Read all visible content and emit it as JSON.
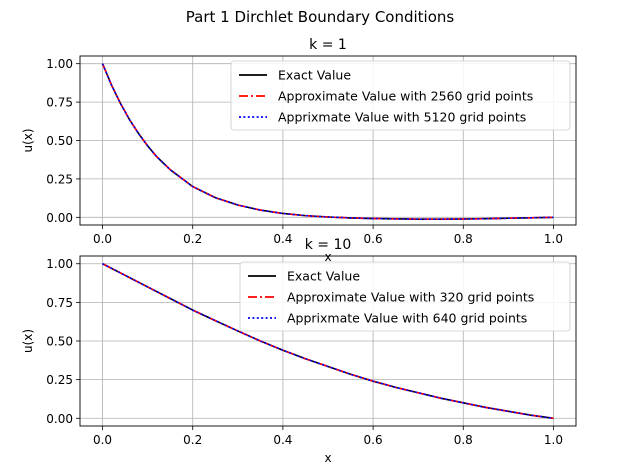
{
  "suptitle": "Part 1 Dirchlet Boundary Conditions",
  "colors": {
    "exact": "#000000",
    "approx": "#ff0000",
    "fine": "#0000ff",
    "grid": "#b0b0b0"
  },
  "chart_data": [
    {
      "type": "line",
      "title": "k = 1",
      "xlabel": "x",
      "ylabel": "u(x)",
      "xlim": [
        -0.05,
        1.05
      ],
      "ylim": [
        -0.05,
        1.05
      ],
      "xticks": [
        "0.0",
        "0.2",
        "0.4",
        "0.6",
        "0.8",
        "1.0"
      ],
      "yticks": [
        "0.00",
        "0.25",
        "0.50",
        "0.75",
        "1.00"
      ],
      "grid": true,
      "legend_position": "top-right",
      "x": [
        0,
        0.02,
        0.04,
        0.06,
        0.08,
        0.1,
        0.12,
        0.15,
        0.2,
        0.25,
        0.3,
        0.35,
        0.4,
        0.45,
        0.5,
        0.55,
        0.6,
        0.65,
        0.7,
        0.75,
        0.8,
        0.85,
        0.9,
        0.95,
        1.0
      ],
      "series": [
        {
          "name": "Exact Value",
          "style": "solid",
          "color": "#000000",
          "values": [
            1.0,
            0.86,
            0.74,
            0.635,
            0.545,
            0.465,
            0.395,
            0.31,
            0.2,
            0.128,
            0.08,
            0.047,
            0.025,
            0.011,
            0.002,
            -0.004,
            -0.008,
            -0.01,
            -0.012,
            -0.012,
            -0.011,
            -0.009,
            -0.006,
            -0.003,
            0.0
          ]
        },
        {
          "name": "Approximate Value with 2560 grid points",
          "style": "dashdot",
          "color": "#ff0000",
          "values": [
            1.0,
            0.86,
            0.74,
            0.635,
            0.545,
            0.465,
            0.395,
            0.31,
            0.2,
            0.128,
            0.08,
            0.047,
            0.025,
            0.011,
            0.002,
            -0.004,
            -0.008,
            -0.01,
            -0.012,
            -0.012,
            -0.011,
            -0.009,
            -0.006,
            -0.003,
            0.0
          ]
        },
        {
          "name": "Apprixmate Value with 5120 grid points",
          "style": "dotted",
          "color": "#0000ff",
          "values": [
            1.0,
            0.86,
            0.74,
            0.635,
            0.545,
            0.465,
            0.395,
            0.31,
            0.2,
            0.128,
            0.08,
            0.047,
            0.025,
            0.011,
            0.002,
            -0.004,
            -0.008,
            -0.01,
            -0.012,
            -0.012,
            -0.011,
            -0.009,
            -0.006,
            -0.003,
            0.0
          ]
        }
      ]
    },
    {
      "type": "line",
      "title": "k = 10",
      "xlabel": "x",
      "ylabel": "u(x)",
      "xlim": [
        -0.05,
        1.05
      ],
      "ylim": [
        -0.05,
        1.05
      ],
      "xticks": [
        "0.0",
        "0.2",
        "0.4",
        "0.6",
        "0.8",
        "1.0"
      ],
      "yticks": [
        "0.00",
        "0.25",
        "0.50",
        "0.75",
        "1.00"
      ],
      "grid": true,
      "legend_position": "top-right",
      "x": [
        0,
        0.05,
        0.1,
        0.15,
        0.2,
        0.25,
        0.3,
        0.35,
        0.4,
        0.45,
        0.5,
        0.55,
        0.6,
        0.65,
        0.7,
        0.75,
        0.8,
        0.85,
        0.9,
        0.95,
        1.0
      ],
      "series": [
        {
          "name": "Exact Value",
          "style": "solid",
          "color": "#000000",
          "values": [
            1.0,
            0.925,
            0.85,
            0.775,
            0.7,
            0.632,
            0.565,
            0.5,
            0.44,
            0.385,
            0.335,
            0.285,
            0.24,
            0.2,
            0.165,
            0.13,
            0.1,
            0.07,
            0.045,
            0.02,
            0.0
          ]
        },
        {
          "name": "Approximate Value with 320 grid points",
          "style": "dashdot",
          "color": "#ff0000",
          "values": [
            1.0,
            0.925,
            0.85,
            0.775,
            0.7,
            0.632,
            0.565,
            0.5,
            0.44,
            0.385,
            0.335,
            0.285,
            0.24,
            0.2,
            0.165,
            0.13,
            0.1,
            0.07,
            0.045,
            0.02,
            0.0
          ]
        },
        {
          "name": "Apprixmate Value with 640 grid points",
          "style": "dotted",
          "color": "#0000ff",
          "values": [
            1.0,
            0.925,
            0.85,
            0.775,
            0.7,
            0.632,
            0.565,
            0.5,
            0.44,
            0.385,
            0.335,
            0.285,
            0.24,
            0.2,
            0.165,
            0.13,
            0.1,
            0.07,
            0.045,
            0.02,
            0.0
          ]
        }
      ]
    }
  ]
}
